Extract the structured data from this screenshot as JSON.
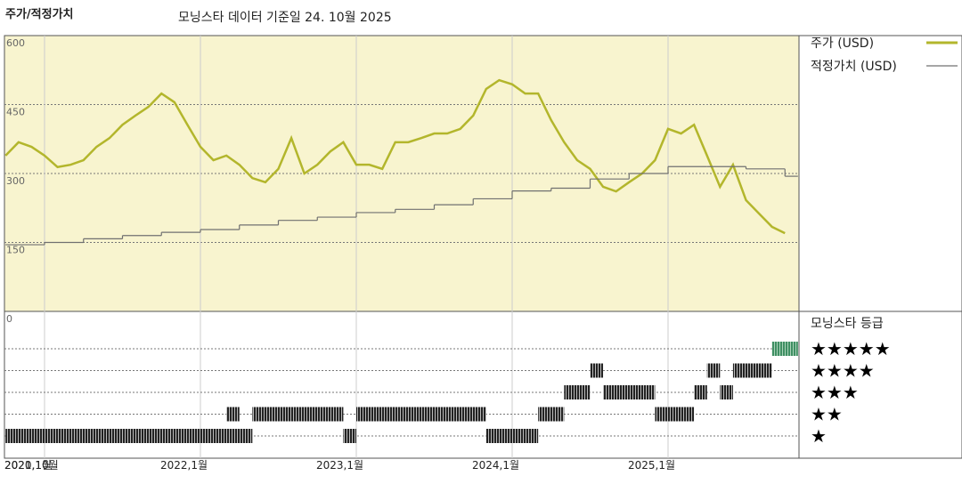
{
  "chart_data": {
    "type": "line",
    "title": "주가/적정가치",
    "subtitle": "모닝스타 데이터 기준일 24. 10월 2025",
    "x": [
      "2020-10",
      "2020-11",
      "2020-12",
      "2021-01",
      "2021-02",
      "2021-03",
      "2021-04",
      "2021-05",
      "2021-06",
      "2021-07",
      "2021-08",
      "2021-09",
      "2021-10",
      "2021-11",
      "2021-12",
      "2022-01",
      "2022-02",
      "2022-03",
      "2022-04",
      "2022-05",
      "2022-06",
      "2022-07",
      "2022-08",
      "2022-09",
      "2022-10",
      "2022-11",
      "2022-12",
      "2023-01",
      "2023-02",
      "2023-03",
      "2023-04",
      "2023-05",
      "2023-06",
      "2023-07",
      "2023-08",
      "2023-09",
      "2023-10",
      "2023-11",
      "2023-12",
      "2024-01",
      "2024-02",
      "2024-03",
      "2024-04",
      "2024-05",
      "2024-06",
      "2024-07",
      "2024-08",
      "2024-09",
      "2024-10",
      "2024-11",
      "2024-12",
      "2025-01",
      "2025-02",
      "2025-03",
      "2025-04",
      "2025-05",
      "2025-06",
      "2025-07",
      "2025-08",
      "2025-09",
      "2025-10"
    ],
    "series": [
      {
        "name": "주가 (USD)",
        "color": "#b3b62c",
        "values": [
          339,
          368,
          358,
          339,
          314,
          319,
          329,
          358,
          377,
          406,
          426,
          445,
          474,
          455,
          406,
          358,
          329,
          339,
          319,
          290,
          281,
          310,
          377,
          300,
          319,
          348,
          368,
          319,
          319,
          310,
          368,
          368,
          377,
          387,
          387,
          397,
          426,
          484,
          503,
          494,
          474,
          474,
          416,
          368,
          329,
          310,
          271,
          261,
          281,
          300,
          329,
          397,
          387,
          406,
          339,
          271,
          319,
          242,
          213,
          184,
          170
        ]
      },
      {
        "name": "적정가치 (USD)",
        "color": "#707070",
        "step": true,
        "x": [
          "2020-10",
          "2021-01",
          "2021-04",
          "2021-07",
          "2021-10",
          "2022-01",
          "2022-04",
          "2022-07",
          "2022-10",
          "2023-01",
          "2023-04",
          "2023-07",
          "2023-10",
          "2024-01",
          "2024-04",
          "2024-07",
          "2024-10",
          "2025-01",
          "2025-04",
          "2025-07",
          "2025-10"
        ],
        "values": [
          145,
          150,
          158,
          165,
          172,
          178,
          188,
          198,
          205,
          215,
          222,
          232,
          245,
          262,
          268,
          288,
          300,
          315,
          315,
          310,
          294
        ]
      }
    ],
    "ylim": [
      0,
      600
    ],
    "yticks": [
      0,
      150,
      300,
      450,
      600
    ],
    "xticks": [
      {
        "value": "2020-10",
        "label": "2020,10월"
      },
      {
        "value": "2021-01",
        "label": "2021,1월"
      },
      {
        "value": "2022-01",
        "label": "2022,1월"
      },
      {
        "value": "2023-01",
        "label": "2023,1월"
      },
      {
        "value": "2024-01",
        "label": "2024,1월"
      },
      {
        "value": "2025-01",
        "label": "2025,1월"
      }
    ],
    "grid": true,
    "rating": {
      "title": "모닝스타 등급",
      "levels": [
        {
          "stars": 5,
          "label": "★★★★★"
        },
        {
          "stars": 4,
          "label": "★★★★"
        },
        {
          "stars": 3,
          "label": "★★★"
        },
        {
          "stars": 2,
          "label": "★★"
        },
        {
          "stars": 1,
          "label": "★"
        }
      ],
      "color": "#222222",
      "top_color": "#3f8f63",
      "periods": [
        {
          "start": "2020-10",
          "end": "2022-04",
          "stars": 1
        },
        {
          "start": "2022-03",
          "end": "2022-03",
          "stars": 2
        },
        {
          "start": "2022-05",
          "end": "2022-11",
          "stars": 2
        },
        {
          "start": "2022-12",
          "end": "2022-12",
          "stars": 1
        },
        {
          "start": "2023-01",
          "end": "2023-10",
          "stars": 2
        },
        {
          "start": "2023-11",
          "end": "2024-02",
          "stars": 1
        },
        {
          "start": "2024-03",
          "end": "2024-04",
          "stars": 2
        },
        {
          "start": "2024-05",
          "end": "2024-06",
          "stars": 3
        },
        {
          "start": "2024-07",
          "end": "2024-07",
          "stars": 4
        },
        {
          "start": "2024-08",
          "end": "2024-11",
          "stars": 3
        },
        {
          "start": "2024-12",
          "end": "2025-02",
          "stars": 2
        },
        {
          "start": "2025-03",
          "end": "2025-03",
          "stars": 3
        },
        {
          "start": "2025-04",
          "end": "2025-04",
          "stars": 4
        },
        {
          "start": "2025-05",
          "end": "2025-05",
          "stars": 3
        },
        {
          "start": "2025-06",
          "end": "2025-08",
          "stars": 4
        },
        {
          "start": "2025-09",
          "end": "2025-10",
          "stars": 5
        }
      ]
    }
  }
}
